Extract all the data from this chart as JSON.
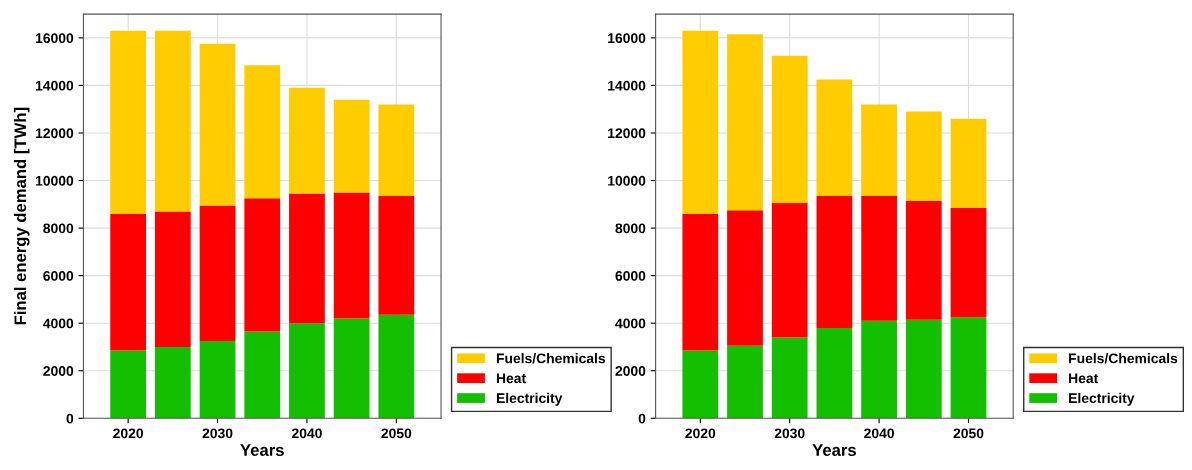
{
  "chart_data": [
    {
      "type": "bar",
      "stacked": true,
      "xlabel": "Years",
      "ylabel": "Final energy demand [TWh]",
      "x": [
        2020,
        2025,
        2030,
        2035,
        2040,
        2045,
        2050
      ],
      "xlim": [
        2015,
        2055
      ],
      "xticks": [
        2020,
        2030,
        2040,
        2050
      ],
      "ylim": [
        0,
        17000
      ],
      "yticks": [
        0,
        2000,
        4000,
        6000,
        8000,
        10000,
        12000,
        14000,
        16000
      ],
      "grid": true,
      "legend": "bottom right",
      "series": [
        {
          "name": "Electricity",
          "color": "#14bf00",
          "values": [
            2850,
            3000,
            3250,
            3650,
            4000,
            4200,
            4350
          ]
        },
        {
          "name": "Heat",
          "color": "#ff0000",
          "values": [
            5750,
            5700,
            5700,
            5600,
            5450,
            5300,
            5000
          ]
        },
        {
          "name": "Fuels/Chemicals",
          "color": "#ffcc00",
          "values": [
            7700,
            7600,
            6800,
            5600,
            4450,
            3900,
            3850
          ]
        }
      ]
    },
    {
      "type": "bar",
      "stacked": true,
      "xlabel": "Years",
      "x": [
        2020,
        2025,
        2030,
        2035,
        2040,
        2045,
        2050
      ],
      "xlim": [
        2015,
        2055
      ],
      "xticks": [
        2020,
        2030,
        2040,
        2050
      ],
      "ylim": [
        0,
        17000
      ],
      "yticks": [
        0,
        2000,
        4000,
        6000,
        8000,
        10000,
        12000,
        14000,
        16000
      ],
      "grid": true,
      "legend": "bottom right",
      "series": [
        {
          "name": "Electricity",
          "color": "#14bf00",
          "values": [
            2850,
            3050,
            3400,
            3800,
            4100,
            4150,
            4250
          ]
        },
        {
          "name": "Heat",
          "color": "#ff0000",
          "values": [
            5750,
            5700,
            5650,
            5550,
            5250,
            5000,
            4600
          ]
        },
        {
          "name": "Fuels/Chemicals",
          "color": "#ffcc00",
          "values": [
            7700,
            7400,
            6200,
            4900,
            3850,
            3750,
            3750
          ]
        }
      ]
    }
  ]
}
